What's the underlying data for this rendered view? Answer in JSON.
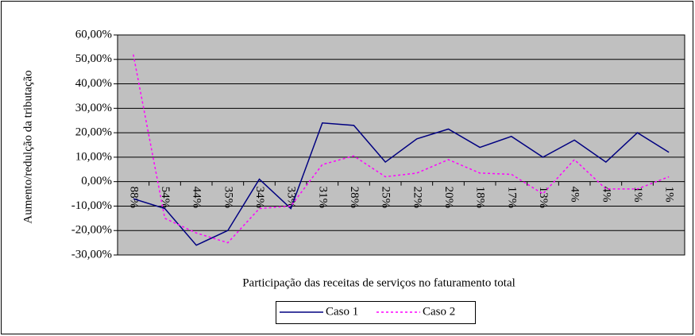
{
  "chart_data": {
    "type": "line",
    "x_label": "Participação das receitas de serviços no faturamento total",
    "y_label": "Aumento/redulção da tributação",
    "categories": [
      "88%",
      "54%",
      "44%",
      "35%",
      "34%",
      "33%",
      "31%",
      "28%",
      "25%",
      "22%",
      "20%",
      "18%",
      "17%",
      "13%",
      "4%",
      "4%",
      "1%",
      "1%"
    ],
    "series": [
      {
        "name": "Caso 1",
        "color": "#000080",
        "dash": "solid",
        "values": [
          -7,
          -11,
          -26,
          -20,
          1,
          -11,
          24,
          23,
          8,
          17.5,
          21.5,
          14,
          18.5,
          10,
          17,
          8,
          20,
          12
        ]
      },
      {
        "name": "Caso 2",
        "color": "#ff00ff",
        "dash": "dashed",
        "values": [
          52,
          -15,
          -21,
          -25,
          -11,
          -10,
          7,
          10.5,
          2,
          3.5,
          9,
          3.5,
          3,
          -5,
          9,
          -3,
          -3,
          2
        ]
      }
    ],
    "ylim": [
      -30,
      60
    ],
    "yticks": [
      {
        "value": -30,
        "label": "-30,00%"
      },
      {
        "value": -20,
        "label": "-20,00%"
      },
      {
        "value": -10,
        "label": "-10,00%"
      },
      {
        "value": 0,
        "label": "0,00%"
      },
      {
        "value": 10,
        "label": "10,00%"
      },
      {
        "value": 20,
        "label": "20,00%"
      },
      {
        "value": 30,
        "label": "30,00%"
      },
      {
        "value": 40,
        "label": "40,00%"
      },
      {
        "value": 50,
        "label": "50,00%"
      },
      {
        "value": 60,
        "label": "60,00%"
      }
    ],
    "grid": true,
    "legend": "bottom"
  }
}
